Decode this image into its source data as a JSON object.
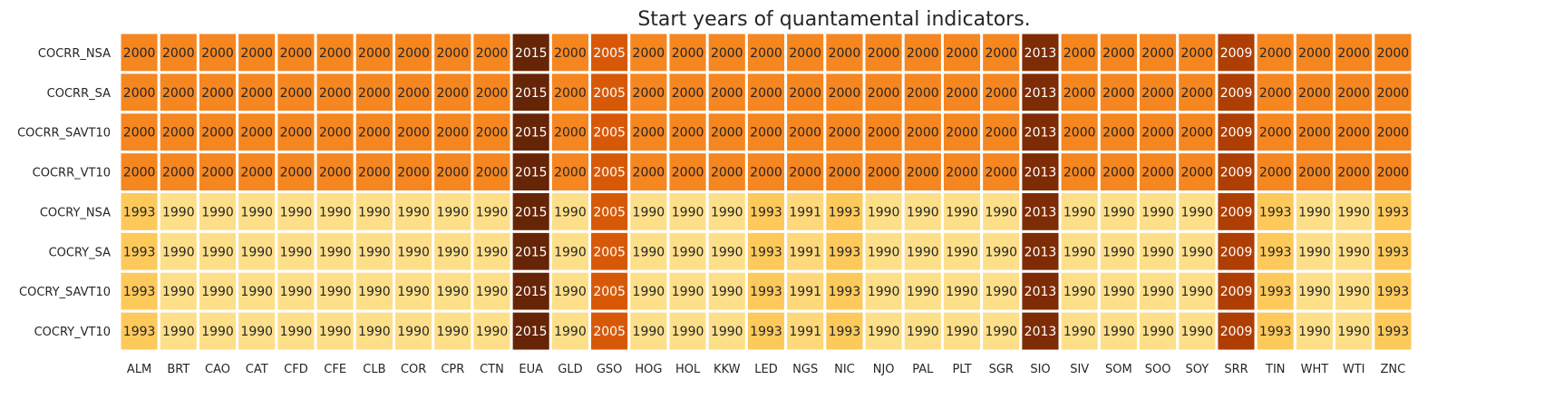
{
  "chart_data": {
    "type": "heatmap",
    "title": "Start years of quantamental indicators.",
    "xlabel": "",
    "ylabel": "",
    "rows": [
      "COCRR_NSA",
      "COCRR_SA",
      "COCRR_SAVT10",
      "COCRR_VT10",
      "COCRY_NSA",
      "COCRY_SA",
      "COCRY_SAVT10",
      "COCRY_VT10"
    ],
    "columns": [
      "ALM",
      "BRT",
      "CAO",
      "CAT",
      "CFD",
      "CFE",
      "CLB",
      "COR",
      "CPR",
      "CTN",
      "EUA",
      "GLD",
      "GSO",
      "HOG",
      "HOL",
      "KKW",
      "LED",
      "NGS",
      "NIC",
      "NJO",
      "PAL",
      "PLT",
      "SGR",
      "SIO",
      "SIV",
      "SOM",
      "SOO",
      "SOY",
      "SRR",
      "TIN",
      "WHT",
      "WTI",
      "ZNC"
    ],
    "values": [
      [
        2000,
        2000,
        2000,
        2000,
        2000,
        2000,
        2000,
        2000,
        2000,
        2000,
        2015,
        2000,
        2005,
        2000,
        2000,
        2000,
        2000,
        2000,
        2000,
        2000,
        2000,
        2000,
        2000,
        2013,
        2000,
        2000,
        2000,
        2000,
        2009,
        2000,
        2000,
        2000,
        2000
      ],
      [
        2000,
        2000,
        2000,
        2000,
        2000,
        2000,
        2000,
        2000,
        2000,
        2000,
        2015,
        2000,
        2005,
        2000,
        2000,
        2000,
        2000,
        2000,
        2000,
        2000,
        2000,
        2000,
        2000,
        2013,
        2000,
        2000,
        2000,
        2000,
        2009,
        2000,
        2000,
        2000,
        2000
      ],
      [
        2000,
        2000,
        2000,
        2000,
        2000,
        2000,
        2000,
        2000,
        2000,
        2000,
        2015,
        2000,
        2005,
        2000,
        2000,
        2000,
        2000,
        2000,
        2000,
        2000,
        2000,
        2000,
        2000,
        2013,
        2000,
        2000,
        2000,
        2000,
        2009,
        2000,
        2000,
        2000,
        2000
      ],
      [
        2000,
        2000,
        2000,
        2000,
        2000,
        2000,
        2000,
        2000,
        2000,
        2000,
        2015,
        2000,
        2005,
        2000,
        2000,
        2000,
        2000,
        2000,
        2000,
        2000,
        2000,
        2000,
        2000,
        2013,
        2000,
        2000,
        2000,
        2000,
        2009,
        2000,
        2000,
        2000,
        2000
      ],
      [
        1993,
        1990,
        1990,
        1990,
        1990,
        1990,
        1990,
        1990,
        1990,
        1990,
        2015,
        1990,
        2005,
        1990,
        1990,
        1990,
        1993,
        1991,
        1993,
        1990,
        1990,
        1990,
        1990,
        2013,
        1990,
        1990,
        1990,
        1990,
        2009,
        1993,
        1990,
        1990,
        1993
      ],
      [
        1993,
        1990,
        1990,
        1990,
        1990,
        1990,
        1990,
        1990,
        1990,
        1990,
        2015,
        1990,
        2005,
        1990,
        1990,
        1990,
        1993,
        1991,
        1993,
        1990,
        1990,
        1990,
        1990,
        2013,
        1990,
        1990,
        1990,
        1990,
        2009,
        1993,
        1990,
        1990,
        1993
      ],
      [
        1993,
        1990,
        1990,
        1990,
        1990,
        1990,
        1990,
        1990,
        1990,
        1990,
        2015,
        1990,
        2005,
        1990,
        1990,
        1990,
        1993,
        1991,
        1993,
        1990,
        1990,
        1990,
        1990,
        2013,
        1990,
        1990,
        1990,
        1990,
        2009,
        1993,
        1990,
        1990,
        1993
      ],
      [
        1993,
        1990,
        1990,
        1990,
        1990,
        1990,
        1990,
        1990,
        1990,
        1990,
        2015,
        1990,
        2005,
        1990,
        1990,
        1990,
        1993,
        1991,
        1993,
        1990,
        1990,
        1990,
        1990,
        2013,
        1990,
        1990,
        1990,
        1990,
        2009,
        1993,
        1990,
        1990,
        1993
      ]
    ],
    "color_scale": {
      "name": "YlOrBr",
      "stops": [
        "#ffffe5",
        "#fff7bc",
        "#fee391",
        "#fec44f",
        "#fe9929",
        "#ec7014",
        "#cc4c02",
        "#993404",
        "#662506"
      ],
      "vmin": 1981,
      "vmax": 2015
    },
    "colorbar": false,
    "grid": false,
    "legend": "none"
  }
}
